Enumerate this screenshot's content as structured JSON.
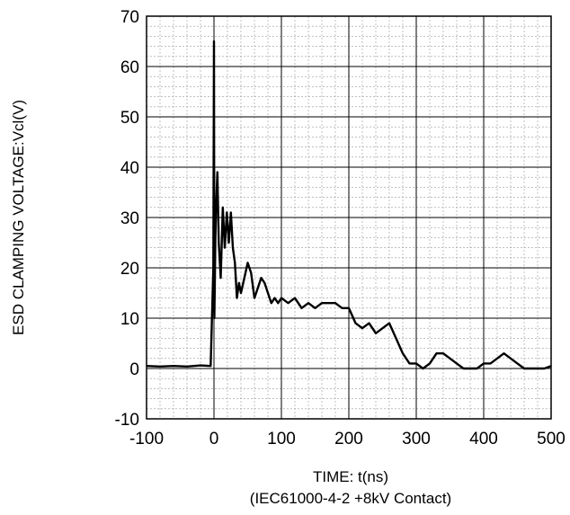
{
  "chart_data": {
    "type": "line",
    "title": "",
    "xlabel": "TIME: t(ns)",
    "xlabel_note": "(IEC61000-4-2 +8kV Contact)",
    "ylabel": "ESD CLAMPING VOLTAGE:Vcl(V)",
    "xlim": [
      -100,
      500
    ],
    "ylim": [
      -10,
      70
    ],
    "x_ticks": [
      -100,
      0,
      100,
      200,
      300,
      400,
      500
    ],
    "y_ticks": [
      -10,
      0,
      10,
      20,
      30,
      40,
      50,
      60,
      70
    ],
    "x_minor_step": 20,
    "y_minor_step": 2,
    "grid": true,
    "line_color": "#000000",
    "series": [
      {
        "x": [
          -100,
          -80,
          -60,
          -40,
          -20,
          -5,
          -1,
          0,
          0.5,
          1,
          2,
          3,
          5,
          7,
          10,
          13,
          16,
          19,
          22,
          25,
          28,
          31,
          34,
          37,
          40,
          45,
          50,
          55,
          60,
          65,
          70,
          75,
          80,
          85,
          90,
          95,
          100,
          110,
          120,
          130,
          140,
          150,
          160,
          170,
          180,
          190,
          200,
          210,
          220,
          230,
          240,
          250,
          260,
          270,
          280,
          290,
          300,
          310,
          320,
          330,
          340,
          350,
          360,
          370,
          380,
          390,
          400,
          410,
          420,
          430,
          440,
          450,
          460,
          470,
          480,
          490,
          500
        ],
        "y": [
          0.5,
          0.4,
          0.5,
          0.4,
          0.6,
          0.5,
          20,
          65,
          10,
          15,
          25,
          32,
          39,
          25,
          18,
          32,
          24,
          31,
          25,
          31,
          24,
          21,
          14,
          17,
          15,
          18,
          21,
          19,
          14,
          16,
          18,
          17,
          15,
          13,
          14,
          13,
          14,
          13,
          14,
          12,
          13,
          12,
          13,
          13,
          13,
          12,
          12,
          9,
          8,
          9,
          7,
          8,
          9,
          6,
          3,
          1,
          1,
          0,
          1,
          3,
          3,
          2,
          1,
          0,
          0,
          0,
          1,
          1,
          2,
          3,
          2,
          1,
          0,
          0,
          0,
          0,
          0.5
        ]
      }
    ]
  }
}
